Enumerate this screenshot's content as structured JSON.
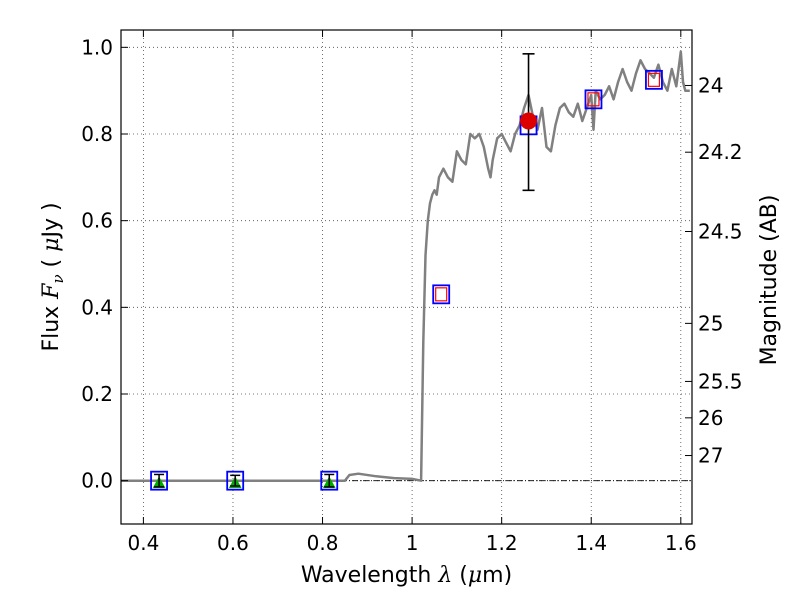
{
  "chart_data": {
    "type": "line",
    "title": "",
    "xlabel": {
      "prefix": "Wavelength  ",
      "symbol": "λ",
      "suffix": " (",
      "unit_symbol": "μ",
      "unit": "m)"
    },
    "ylabel": {
      "prefix": "Flux  ",
      "symbol": "F",
      "subscript": "ν",
      "mid": "  ( ",
      "unit_symbol": "μ",
      "unit": "Jy )"
    },
    "y2label": "Magnitude (AB)",
    "xlim": [
      0.35,
      1.625
    ],
    "ylim": [
      -0.1,
      1.04
    ],
    "grid": true,
    "colors": {
      "model": "#808080",
      "photometry_box": "#0000ff",
      "model_flux_box": "#ff0000",
      "detection": "#dd0000",
      "upper_limit": "#00aa00",
      "errorbar": "#000000",
      "zero_line": "#000000"
    },
    "x_ticks": [
      {
        "value": 0.4,
        "label": "0.4"
      },
      {
        "value": 0.6,
        "label": "0.6"
      },
      {
        "value": 0.8,
        "label": "0.8"
      },
      {
        "value": 1.0,
        "label": "1"
      },
      {
        "value": 1.2,
        "label": "1.2"
      },
      {
        "value": 1.4,
        "label": "1.4"
      },
      {
        "value": 1.6,
        "label": "1.6"
      }
    ],
    "y_ticks": [
      {
        "value": 0.0,
        "label": "0.0"
      },
      {
        "value": 0.2,
        "label": "0.2"
      },
      {
        "value": 0.4,
        "label": "0.4"
      },
      {
        "value": 0.6,
        "label": "0.6"
      },
      {
        "value": 0.8,
        "label": "0.8"
      },
      {
        "value": 1.0,
        "label": "1.0"
      }
    ],
    "y2_ticks": [
      {
        "flux": 0.912,
        "label": "24"
      },
      {
        "flux": 0.758,
        "label": "24.2"
      },
      {
        "flux": 0.575,
        "label": "24.5"
      },
      {
        "flux": 0.363,
        "label": "25"
      },
      {
        "flux": 0.229,
        "label": "25.5"
      },
      {
        "flux": 0.145,
        "label": "26"
      },
      {
        "flux": 0.058,
        "label": "27"
      }
    ],
    "model_spectrum": {
      "name": "model SED",
      "x": [
        0.35,
        0.85,
        0.86,
        0.88,
        0.92,
        0.96,
        1.0,
        1.02,
        1.025,
        1.03,
        1.035,
        1.04,
        1.045,
        1.05,
        1.055,
        1.06,
        1.07,
        1.08,
        1.09,
        1.1,
        1.11,
        1.12,
        1.13,
        1.14,
        1.15,
        1.16,
        1.17,
        1.175,
        1.18,
        1.19,
        1.2,
        1.21,
        1.22,
        1.23,
        1.24,
        1.25,
        1.26,
        1.27,
        1.28,
        1.29,
        1.3,
        1.31,
        1.32,
        1.33,
        1.34,
        1.35,
        1.36,
        1.37,
        1.38,
        1.39,
        1.4,
        1.405,
        1.41,
        1.42,
        1.43,
        1.44,
        1.45,
        1.46,
        1.47,
        1.48,
        1.49,
        1.5,
        1.51,
        1.52,
        1.53,
        1.54,
        1.55,
        1.56,
        1.57,
        1.58,
        1.59,
        1.6,
        1.605,
        1.61,
        1.62
      ],
      "y": [
        0.0,
        0.0,
        0.013,
        0.016,
        0.01,
        0.006,
        0.004,
        0.0,
        0.32,
        0.52,
        0.6,
        0.64,
        0.66,
        0.67,
        0.66,
        0.7,
        0.72,
        0.7,
        0.69,
        0.76,
        0.74,
        0.73,
        0.8,
        0.79,
        0.8,
        0.77,
        0.72,
        0.7,
        0.74,
        0.79,
        0.8,
        0.78,
        0.76,
        0.8,
        0.82,
        0.86,
        0.89,
        0.84,
        0.81,
        0.86,
        0.77,
        0.76,
        0.82,
        0.86,
        0.87,
        0.85,
        0.84,
        0.87,
        0.83,
        0.86,
        0.89,
        0.81,
        0.9,
        0.88,
        0.89,
        0.91,
        0.88,
        0.92,
        0.95,
        0.92,
        0.9,
        0.94,
        0.97,
        0.95,
        0.94,
        0.93,
        0.96,
        0.92,
        0.9,
        0.95,
        0.91,
        0.99,
        0.92,
        0.9,
        0.9
      ]
    },
    "photometry_boxes": [
      {
        "name": "band-0.44",
        "x": 0.435,
        "y": 0.0
      },
      {
        "name": "band-0.60",
        "x": 0.605,
        "y": 0.0
      },
      {
        "name": "band-0.81",
        "x": 0.815,
        "y": 0.0
      },
      {
        "name": "band-1.06",
        "x": 1.065,
        "y": 0.43
      },
      {
        "name": "band-1.26",
        "x": 1.26,
        "y": 0.82
      },
      {
        "name": "band-1.40",
        "x": 1.405,
        "y": 0.88
      },
      {
        "name": "band-1.54",
        "x": 1.54,
        "y": 0.925
      }
    ],
    "model_flux_points": [
      {
        "name": "model-flux-1.06",
        "x": 1.065,
        "y": 0.43
      },
      {
        "name": "model-flux-1.40",
        "x": 1.405,
        "y": 0.88
      },
      {
        "name": "model-flux-1.54",
        "x": 1.54,
        "y": 0.925
      }
    ],
    "detections": [
      {
        "name": "detection-1.26",
        "x": 1.26,
        "y": 0.83,
        "err_low": 0.67,
        "err_high": 0.985
      }
    ],
    "upper_limits": [
      {
        "name": "limit-0.44",
        "x": 0.435,
        "y": -0.005,
        "err_low": -0.012,
        "err_high": 0.012
      },
      {
        "name": "limit-0.60",
        "x": 0.605,
        "y": -0.005,
        "err_low": -0.01,
        "err_high": 0.01
      },
      {
        "name": "limit-0.81",
        "x": 0.815,
        "y": -0.005,
        "err_low": -0.012,
        "err_high": 0.012
      }
    ]
  }
}
